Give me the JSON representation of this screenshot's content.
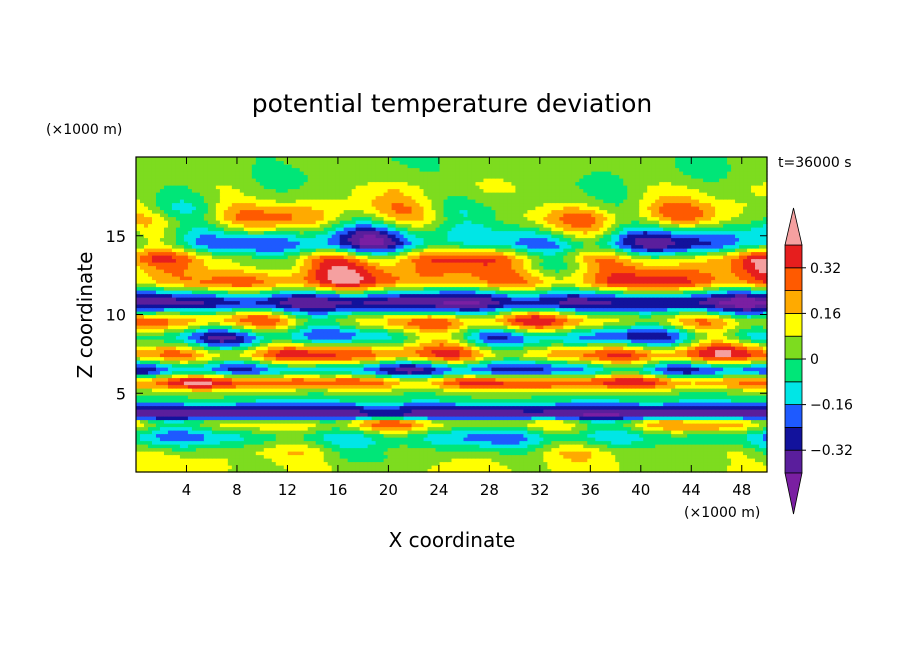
{
  "chart_data": {
    "type": "heatmap",
    "title": "potential temperature deviation",
    "xlabel": "X coordinate",
    "ylabel": "Z coordinate",
    "x_unit": "(×1000 m)",
    "y_unit": "(×1000 m)",
    "time_label": "t=36000 s",
    "xlim": [
      0,
      50
    ],
    "ylim": [
      0,
      20
    ],
    "x_ticks": [
      4,
      8,
      12,
      16,
      20,
      24,
      28,
      32,
      36,
      40,
      44,
      48
    ],
    "y_ticks": [
      5,
      10,
      15
    ],
    "colorbar": {
      "levels": [
        -0.4,
        -0.32,
        -0.24,
        -0.16,
        -0.08,
        0,
        0.08,
        0.16,
        0.24,
        0.32,
        0.4
      ],
      "tick_labels": [
        "0.32",
        "0.16",
        "0",
        "−0.16",
        "−0.32"
      ],
      "tick_values": [
        0.32,
        0.16,
        0,
        -0.16,
        -0.32
      ],
      "colors": [
        "#7a1fa2",
        "#5a1e9c",
        "#12129c",
        "#1e5aff",
        "#00e6e6",
        "#00e678",
        "#7ddc1f",
        "#ffff00",
        "#ffaa00",
        "#ff5a00",
        "#e61e1e",
        "#f5a0a0"
      ],
      "extend": "both"
    },
    "bands": [
      {
        "z": 19.0,
        "value": 0.02,
        "amp": 0.05
      },
      {
        "z": 17.8,
        "value": 0.06,
        "amp": 0.12
      },
      {
        "z": 16.3,
        "value": 0.12,
        "amp": 0.26
      },
      {
        "z": 14.6,
        "value": -0.18,
        "amp": 0.28
      },
      {
        "z": 13.4,
        "value": 0.2,
        "amp": 0.28
      },
      {
        "z": 12.2,
        "value": 0.26,
        "amp": 0.2
      },
      {
        "z": 10.8,
        "value": -0.34,
        "amp": 0.12
      },
      {
        "z": 9.6,
        "value": 0.18,
        "amp": 0.26
      },
      {
        "z": 8.6,
        "value": -0.12,
        "amp": 0.28
      },
      {
        "z": 7.5,
        "value": 0.24,
        "amp": 0.22
      },
      {
        "z": 6.5,
        "value": -0.2,
        "amp": 0.2
      },
      {
        "z": 5.7,
        "value": 0.28,
        "amp": 0.16
      },
      {
        "z": 4.9,
        "value": 0.0,
        "amp": 0.02
      },
      {
        "z": 3.7,
        "value": -0.36,
        "amp": 0.06
      },
      {
        "z": 3.1,
        "value": 0.12,
        "amp": 0.22
      },
      {
        "z": 2.2,
        "value": -0.1,
        "amp": 0.16
      },
      {
        "z": 1.1,
        "value": 0.06,
        "amp": 0.14
      },
      {
        "z": 0.3,
        "value": 0.08,
        "amp": 0.05
      }
    ]
  }
}
